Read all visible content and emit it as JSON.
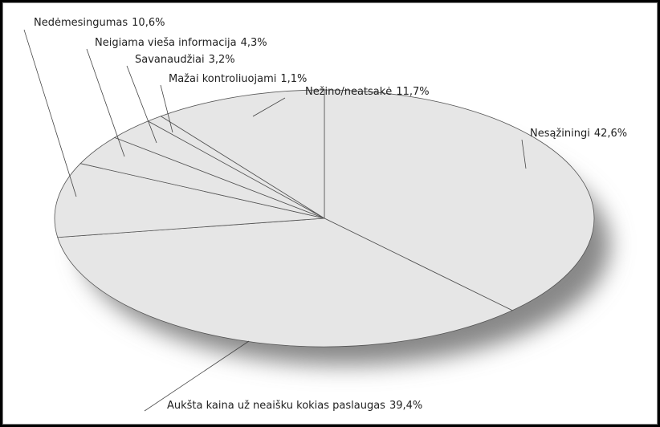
{
  "chart_data": {
    "type": "pie",
    "categories": [
      "Nesąžiningi",
      "Aukšta kaina už neaišku kokias paslaugas",
      "Nedėmesingumas",
      "Neigiama vieša informacija",
      "Savanaudžiai",
      "Mažai kontroliuojami",
      "Nežino/neatsakė"
    ],
    "values": [
      42.6,
      39.4,
      10.6,
      4.3,
      3.2,
      1.1,
      11.7
    ],
    "value_labels": [
      "42,6%",
      "39,4%",
      "10,6%",
      "4,3%",
      "3,2%",
      "1,1%",
      "11,7%"
    ],
    "color": "#e6e6e6"
  }
}
